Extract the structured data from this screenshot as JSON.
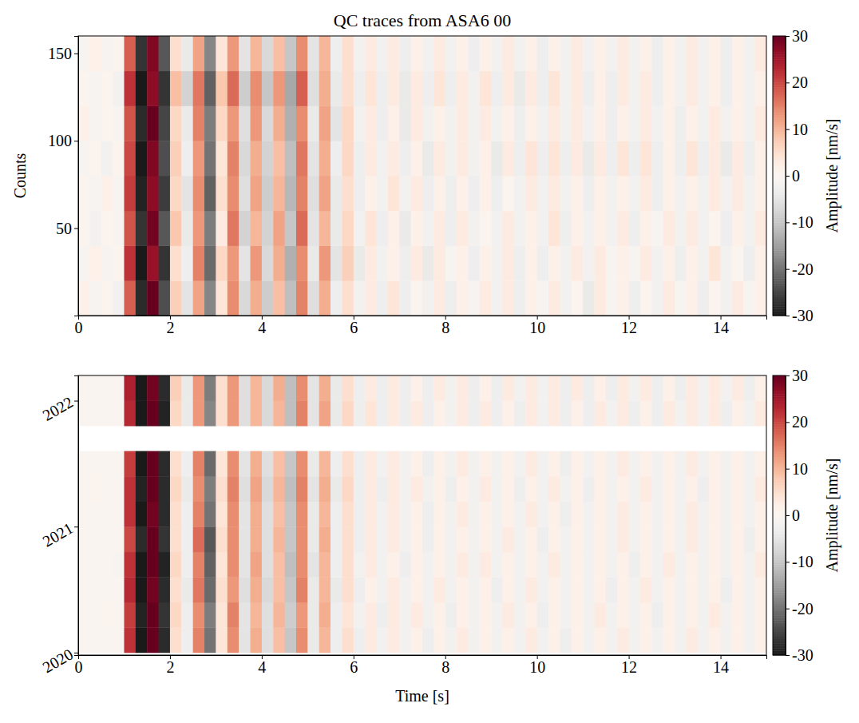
{
  "chart_data": [
    {
      "type": "heatmap",
      "title": "QC traces from ASA6 00",
      "ylabel": "Counts",
      "xlim": [
        0,
        15
      ],
      "xticks": [
        0,
        2,
        4,
        6,
        8,
        10,
        12,
        14
      ],
      "ylim": [
        0,
        160
      ],
      "yticks": [
        50,
        100,
        150
      ],
      "zlim": [
        -30,
        30
      ],
      "zticks": [
        -30,
        -20,
        -10,
        0,
        10,
        20,
        30
      ],
      "zlabel": "Amplitude [nm/s]",
      "x": [
        0.125,
        0.375,
        0.625,
        0.875,
        1.125,
        1.375,
        1.625,
        1.875,
        2.125,
        2.375,
        2.625,
        2.875,
        3.125,
        3.375,
        3.625,
        3.875,
        4.125,
        4.375,
        4.625,
        4.875,
        5.125,
        5.375,
        5.625,
        5.875,
        6.125,
        6.375,
        6.625,
        6.875,
        7.125,
        7.375,
        7.625,
        7.875,
        8.125,
        8.375,
        8.625,
        8.875,
        9.125,
        9.375,
        9.625,
        9.875,
        10.125,
        10.375,
        10.625,
        10.875,
        11.125,
        11.375,
        11.625,
        11.875,
        12.125,
        12.375,
        12.625,
        12.875,
        13.125,
        13.375,
        13.625,
        13.875,
        14.125,
        14.375,
        14.625,
        14.875
      ],
      "y": [
        10,
        30,
        50,
        70,
        90,
        110,
        130,
        150
      ],
      "z": [
        [
          2,
          -1,
          1,
          -2,
          18,
          -28,
          30,
          -24,
          7,
          -5,
          12,
          -18,
          4,
          14,
          -7,
          11,
          -9,
          9,
          -11,
          15,
          -6,
          11,
          -3,
          5,
          -2,
          3,
          -3,
          4,
          -3,
          1,
          -2,
          3,
          -3,
          2,
          -1,
          3,
          -2,
          3,
          -3,
          2,
          -1,
          3,
          -2,
          1,
          -4,
          3,
          -1,
          2,
          -3,
          1,
          -2,
          3,
          -1,
          2,
          -3,
          1,
          -2,
          3,
          -1,
          2
        ],
        [
          -1,
          2,
          -1,
          1,
          22,
          -30,
          26,
          -27,
          5,
          -3,
          15,
          -21,
          6,
          13,
          -5,
          13,
          -7,
          11,
          -13,
          14,
          -4,
          13,
          -5,
          7,
          -4,
          3,
          -2,
          2,
          -3,
          3,
          -4,
          3,
          -1,
          2,
          -3,
          2,
          -2,
          3,
          -3,
          2,
          -3,
          2,
          -2,
          3,
          -2,
          3,
          -1,
          2,
          -1,
          3,
          -2,
          2,
          -3,
          2,
          -2,
          4,
          -2,
          1,
          -3,
          2
        ],
        [
          1,
          -2,
          1,
          -1,
          19,
          -27,
          29,
          -23,
          8,
          -4,
          13,
          -19,
          3,
          16,
          -8,
          10,
          -8,
          12,
          -10,
          17,
          -5,
          10,
          -4,
          6,
          -2,
          4,
          -3,
          2,
          -4,
          2,
          -2,
          3,
          -3,
          3,
          -2,
          1,
          -2,
          3,
          -2,
          2,
          -2,
          4,
          -3,
          2,
          -2,
          2,
          -2,
          3,
          -3,
          2,
          -1,
          3,
          -2,
          3,
          -2,
          1,
          -3,
          2,
          -2,
          3
        ],
        [
          1,
          -1,
          2,
          -1,
          21,
          -29,
          27,
          -26,
          6,
          -5,
          14,
          -22,
          5,
          14,
          -6,
          12,
          -9,
          10,
          -12,
          15,
          -6,
          12,
          -4,
          5,
          -3,
          2,
          -2,
          4,
          -2,
          3,
          -3,
          2,
          -3,
          2,
          -3,
          2,
          -3,
          1,
          -2,
          3,
          -2,
          3,
          -2,
          2,
          -3,
          2,
          -2,
          2,
          -2,
          3,
          -3,
          2,
          -2,
          2,
          -2,
          3,
          -2,
          3,
          -2,
          2
        ],
        [
          -1,
          1,
          -2,
          1,
          20,
          -30,
          28,
          -24,
          7,
          -3,
          13,
          -20,
          4,
          15,
          -7,
          11,
          -8,
          9,
          -11,
          16,
          -5,
          11,
          -3,
          6,
          -3,
          3,
          -2,
          3,
          -3,
          2,
          -4,
          3,
          -2,
          3,
          -2,
          2,
          -4,
          3,
          -3,
          4,
          -3,
          4,
          -3,
          3,
          -4,
          3,
          -3,
          4,
          -3,
          4,
          -3,
          2,
          -3,
          4,
          -3,
          3,
          -4,
          3,
          -3,
          2
        ],
        [
          2,
          -1,
          1,
          -1,
          19,
          -28,
          30,
          -25,
          6,
          -4,
          15,
          -19,
          6,
          13,
          -6,
          13,
          -7,
          11,
          -13,
          14,
          -4,
          12,
          -5,
          6,
          -2,
          3,
          -3,
          2,
          -4,
          3,
          -2,
          2,
          -2,
          3,
          -2,
          3,
          -2,
          2,
          -3,
          2,
          -2,
          3,
          -2,
          3,
          -2,
          2,
          -3,
          2,
          -2,
          3,
          -2,
          2,
          -3,
          2,
          -2,
          3,
          -2,
          2,
          -2,
          3
        ],
        [
          1,
          -1,
          1,
          -2,
          22,
          -30,
          27,
          -27,
          9,
          -8,
          16,
          -22,
          8,
          17,
          -9,
          14,
          -10,
          13,
          -14,
          18,
          -6,
          11,
          -4,
          5,
          -3,
          4,
          -3,
          3,
          -4,
          3,
          -3,
          4,
          -3,
          3,
          -2,
          4,
          -3,
          3,
          -4,
          3,
          -3,
          4,
          -2,
          3,
          -3,
          2,
          -3,
          3,
          -2,
          3,
          -3,
          2,
          -2,
          3,
          -2,
          2,
          -3,
          2,
          -2,
          2
        ],
        [
          -1,
          2,
          -1,
          1,
          18,
          -27,
          28,
          -23,
          5,
          -4,
          12,
          -18,
          4,
          13,
          -5,
          10,
          -7,
          9,
          -10,
          14,
          -5,
          10,
          -3,
          5,
          -2,
          3,
          -2,
          3,
          -3,
          2,
          -2,
          3,
          -2,
          2,
          -3,
          2,
          -2,
          3,
          -2,
          2,
          -3,
          2,
          -2,
          3,
          -2,
          2,
          -2,
          3,
          -2,
          2,
          -3,
          2,
          -2,
          3,
          -2,
          2,
          -3,
          2,
          -2,
          3
        ]
      ]
    },
    {
      "type": "heatmap",
      "xlabel": "Time [s]",
      "xlim": [
        0,
        15
      ],
      "xticks": [
        0,
        2,
        4,
        6,
        8,
        10,
        12,
        14
      ],
      "ylim": [
        2019.98,
        2022.2
      ],
      "yticks": [
        2020,
        2021,
        2022
      ],
      "zlim": [
        -30,
        30
      ],
      "zticks": [
        -30,
        -20,
        -10,
        0,
        10,
        20,
        30
      ],
      "zlabel": "Amplitude [nm/s]",
      "x": [
        0.125,
        0.375,
        0.625,
        0.875,
        1.125,
        1.375,
        1.625,
        1.875,
        2.125,
        2.375,
        2.625,
        2.875,
        3.125,
        3.375,
        3.625,
        3.875,
        4.125,
        4.375,
        4.625,
        4.875,
        5.125,
        5.375,
        5.625,
        5.875,
        6.125,
        6.375,
        6.625,
        6.875,
        7.125,
        7.375,
        7.625,
        7.875,
        8.125,
        8.375,
        8.625,
        8.875,
        9.125,
        9.375,
        9.625,
        9.875,
        10.125,
        10.375,
        10.625,
        10.875,
        11.125,
        11.375,
        11.625,
        11.875,
        12.125,
        12.375,
        12.625,
        12.875,
        13.125,
        13.375,
        13.625,
        13.875,
        14.125,
        14.375,
        14.625,
        14.875
      ],
      "y": [
        2020.1,
        2020.3,
        2020.5,
        2020.7,
        2020.9,
        2021.1,
        2021.3,
        2021.5,
        2021.7,
        2021.9,
        2022.1
      ],
      "z": [
        [
          0,
          0,
          0,
          0,
          22,
          -30,
          30,
          -28,
          5,
          -3,
          15,
          -20,
          4,
          14,
          -5,
          11,
          -6,
          9,
          -10,
          14,
          -4,
          10,
          -3,
          5,
          -3,
          3,
          -2,
          3,
          -2,
          2,
          -3,
          2,
          -2,
          3,
          -2,
          2,
          -2,
          2,
          -2,
          3,
          -2,
          2,
          -3,
          2,
          -2,
          2,
          -2,
          3,
          -2,
          2,
          -2,
          2,
          -2,
          3,
          -2,
          2,
          -2,
          2,
          -2,
          2
        ],
        [
          0,
          0,
          1,
          0,
          21,
          -29,
          30,
          -27,
          6,
          -3,
          14,
          -19,
          4,
          15,
          -5,
          10,
          -6,
          10,
          -9,
          13,
          -4,
          11,
          -3,
          4,
          -2,
          3,
          -3,
          3,
          -2,
          3,
          -2,
          2,
          -3,
          2,
          -2,
          2,
          -2,
          3,
          -2,
          2,
          -3,
          2,
          -2,
          2,
          -2,
          3,
          -2,
          2,
          -2,
          2,
          -3,
          2,
          -2,
          2,
          -2,
          3,
          -2,
          2,
          -2,
          2
        ],
        [
          0,
          0,
          0,
          0,
          23,
          -30,
          29,
          -28,
          5,
          -4,
          16,
          -21,
          5,
          13,
          -6,
          11,
          -7,
          9,
          -10,
          15,
          -4,
          10,
          -4,
          5,
          -3,
          2,
          -2,
          3,
          -2,
          2,
          -2,
          3,
          -2,
          2,
          -2,
          2,
          -3,
          2,
          -2,
          3,
          -2,
          2,
          -2,
          2,
          -2,
          2,
          -3,
          2,
          -2,
          3,
          -2,
          2,
          -2,
          2,
          -2,
          2,
          -3,
          2,
          -2,
          2
        ],
        [
          0,
          0,
          0,
          -1,
          22,
          -30,
          30,
          -29,
          6,
          -3,
          15,
          -22,
          4,
          14,
          -5,
          12,
          -6,
          9,
          -11,
          14,
          -5,
          10,
          -3,
          5,
          -2,
          3,
          -2,
          2,
          -3,
          2,
          -2,
          2,
          -2,
          3,
          -2,
          3,
          -2,
          2,
          -2,
          2,
          -2,
          3,
          -2,
          2,
          -2,
          2,
          -2,
          2,
          -3,
          2,
          -2,
          3,
          -2,
          2,
          -2,
          2,
          -2,
          2,
          -2,
          3
        ],
        [
          0,
          0,
          0,
          0,
          20,
          -28,
          30,
          -27,
          5,
          -3,
          17,
          -23,
          5,
          14,
          -5,
          11,
          -6,
          10,
          -10,
          14,
          -4,
          11,
          -3,
          5,
          -3,
          3,
          -2,
          3,
          -2,
          2,
          -3,
          2,
          -2,
          2,
          -2,
          2,
          -2,
          3,
          -2,
          2,
          -3,
          2,
          -2,
          2,
          -2,
          2,
          -2,
          3,
          -2,
          2,
          -2,
          2,
          -2,
          3,
          -2,
          2,
          -2,
          2,
          -3,
          2
        ],
        [
          0,
          0,
          0,
          0,
          22,
          -30,
          29,
          -28,
          5,
          -3,
          15,
          -20,
          4,
          14,
          -5,
          11,
          -6,
          9,
          -10,
          14,
          -4,
          10,
          -3,
          5,
          -3,
          3,
          -2,
          3,
          -2,
          2,
          -3,
          2,
          -2,
          3,
          -2,
          2,
          -2,
          2,
          -2,
          3,
          -2,
          2,
          -3,
          2,
          -2,
          2,
          -2,
          3,
          -2,
          2,
          -2,
          2,
          -2,
          3,
          -2,
          2,
          -2,
          2,
          -2,
          2
        ],
        [
          0,
          1,
          0,
          0,
          22,
          -29,
          30,
          -28,
          6,
          -4,
          14,
          -19,
          5,
          15,
          -6,
          12,
          -7,
          10,
          -11,
          15,
          -5,
          11,
          -4,
          6,
          -3,
          3,
          -3,
          3,
          -2,
          3,
          -2,
          2,
          -3,
          2,
          -2,
          3,
          -2,
          2,
          -3,
          2,
          -2,
          3,
          -2,
          2,
          -3,
          2,
          -2,
          2,
          -2,
          3,
          -2,
          2,
          -2,
          2,
          -3,
          2,
          -2,
          2,
          -2,
          3
        ],
        [
          0,
          0,
          0,
          0,
          21,
          -30,
          30,
          -28,
          5,
          -3,
          15,
          -21,
          4,
          14,
          -5,
          11,
          -6,
          9,
          -10,
          14,
          -4,
          10,
          -3,
          5,
          -3,
          3,
          -2,
          3,
          -2,
          2,
          -3,
          2,
          -2,
          3,
          -2,
          2,
          -2,
          2,
          -2,
          3,
          -2,
          2,
          -3,
          2,
          -2,
          2,
          -2,
          3,
          -2,
          2,
          -2,
          2,
          -2,
          3,
          -2,
          2,
          -2,
          2,
          -2,
          2
        ],
        null,
        [
          0,
          0,
          0,
          0,
          23,
          -30,
          30,
          -29,
          6,
          -4,
          13,
          -18,
          5,
          13,
          -6,
          10,
          -7,
          10,
          -11,
          15,
          -5,
          12,
          -4,
          6,
          -3,
          4,
          -3,
          3,
          -3,
          3,
          -3,
          2,
          -2,
          3,
          -3,
          3,
          -3,
          2,
          -3,
          3,
          -2,
          3,
          -3,
          2,
          -3,
          3,
          -2,
          3,
          -3,
          2,
          -3,
          3,
          -2,
          3,
          -2,
          3,
          -3,
          2,
          -2,
          3
        ],
        [
          0,
          0,
          0,
          0,
          24,
          -30,
          29,
          -28,
          7,
          -4,
          13,
          -19,
          5,
          13,
          -6,
          10,
          -7,
          11,
          -11,
          14,
          -5,
          11,
          -4,
          5,
          -3,
          3,
          -3,
          3,
          -3,
          2,
          -3,
          3,
          -2,
          3,
          -3,
          2,
          -3,
          3,
          -2,
          3,
          -2,
          3,
          -3,
          3,
          -3,
          2,
          -3,
          3,
          -2,
          3,
          -3,
          2,
          -3,
          3,
          -2,
          3,
          -2,
          3,
          -3,
          2
        ]
      ]
    }
  ]
}
